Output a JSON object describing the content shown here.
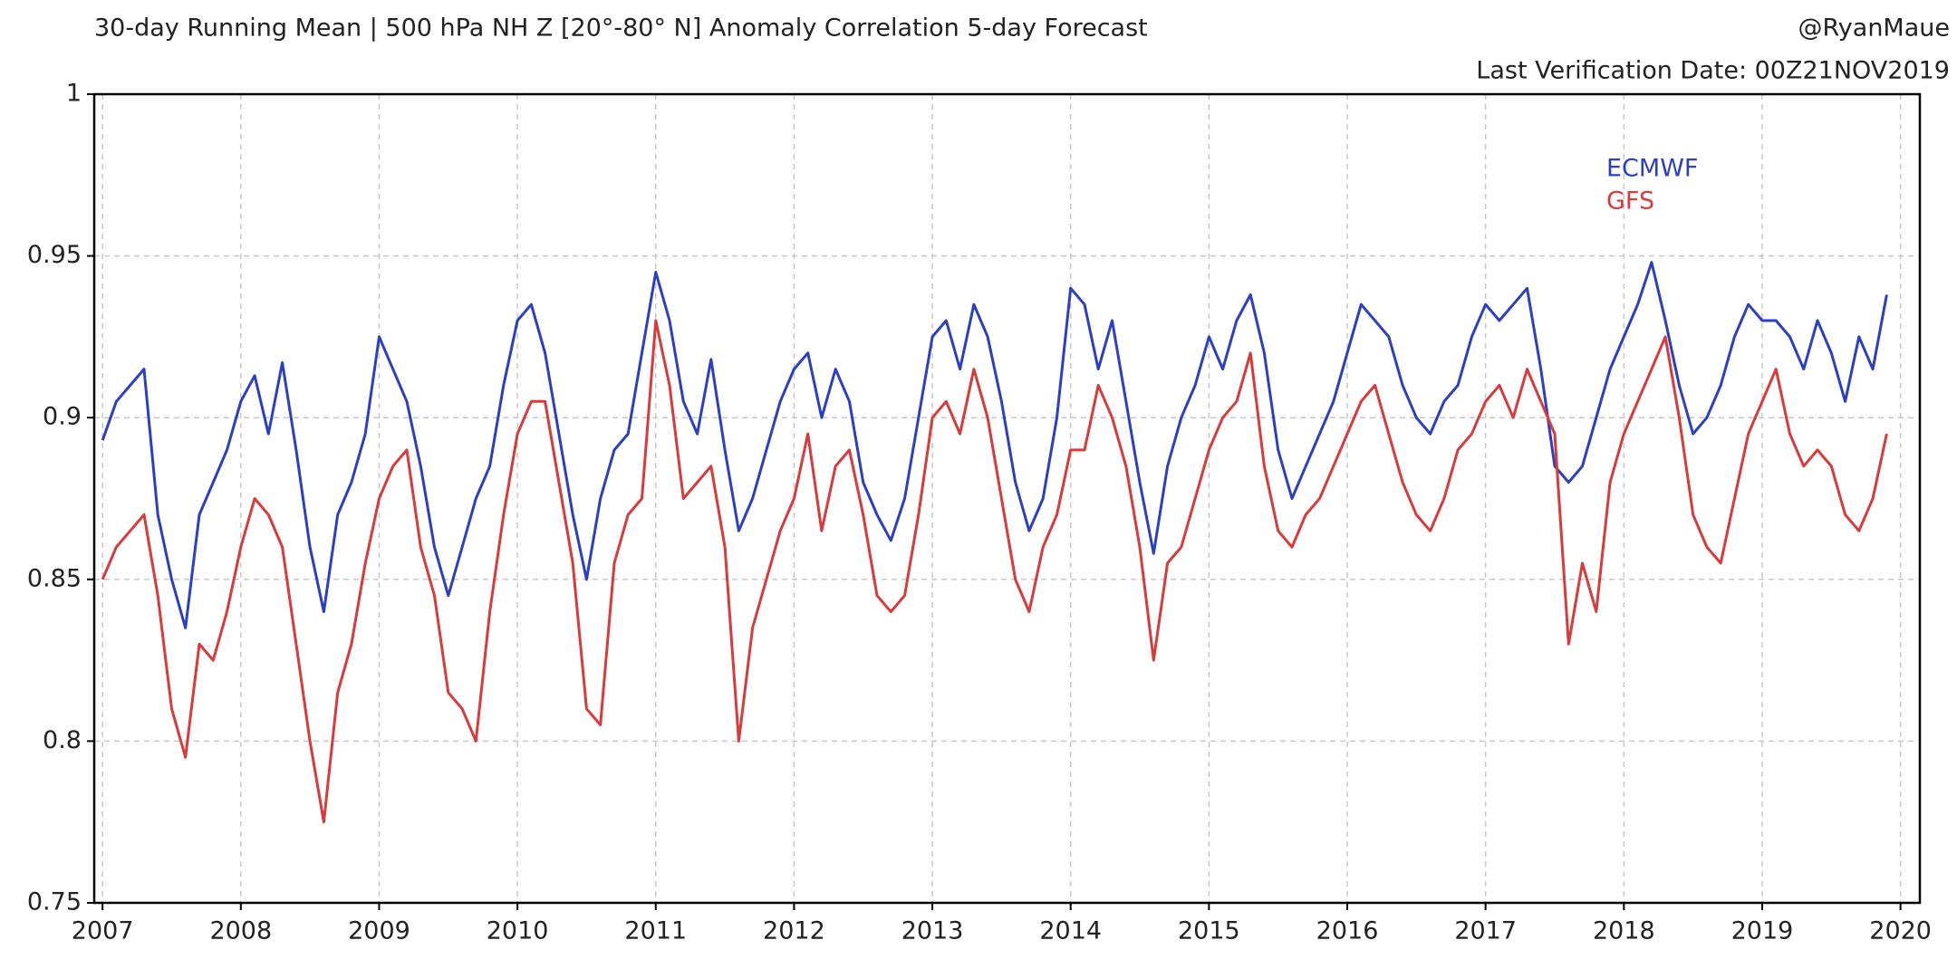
{
  "chart_data": {
    "type": "line",
    "title": "30-day Running Mean | 500 hPa NH Z [20°-80° N] Anomaly Correlation 5-day Forecast",
    "credit": "@RyanMaue",
    "subtitle": "Last Verification Date: 00Z21NOV2019",
    "xlim": [
      2006.94,
      2020.14
    ],
    "ylim": [
      0.75,
      1
    ],
    "xticks": [
      2007,
      2008,
      2009,
      2010,
      2011,
      2012,
      2013,
      2014,
      2015,
      2016,
      2017,
      2018,
      2019,
      2020
    ],
    "yticks": [
      0.75,
      0.8,
      0.85,
      0.9,
      0.95,
      1
    ],
    "grid": true,
    "legend": "upper right",
    "x": [
      2007,
      2007.1,
      2007.2,
      2007.3,
      2007.4,
      2007.5,
      2007.6,
      2007.7,
      2007.8,
      2007.9,
      2008,
      2008.1,
      2008.2,
      2008.3,
      2008.4,
      2008.5,
      2008.6,
      2008.7,
      2008.8,
      2008.9,
      2009,
      2009.1,
      2009.2,
      2009.3,
      2009.4,
      2009.5,
      2009.6,
      2009.7,
      2009.8,
      2009.9,
      2010,
      2010.1,
      2010.2,
      2010.3,
      2010.4,
      2010.5,
      2010.6,
      2010.7,
      2010.8,
      2010.9,
      2011,
      2011.1,
      2011.2,
      2011.3,
      2011.4,
      2011.5,
      2011.6,
      2011.7,
      2011.8,
      2011.9,
      2012,
      2012.1,
      2012.2,
      2012.3,
      2012.4,
      2012.5,
      2012.6,
      2012.7,
      2012.8,
      2012.9,
      2013,
      2013.1,
      2013.2,
      2013.3,
      2013.4,
      2013.5,
      2013.6,
      2013.7,
      2013.8,
      2013.9,
      2014,
      2014.1,
      2014.2,
      2014.3,
      2014.4,
      2014.5,
      2014.6,
      2014.7,
      2014.8,
      2014.9,
      2015,
      2015.1,
      2015.2,
      2015.3,
      2015.4,
      2015.5,
      2015.6,
      2015.7,
      2015.8,
      2015.9,
      2016,
      2016.1,
      2016.2,
      2016.3,
      2016.4,
      2016.5,
      2016.6,
      2016.7,
      2016.8,
      2016.9,
      2017,
      2017.1,
      2017.2,
      2017.3,
      2017.4,
      2017.5,
      2017.6,
      2017.7,
      2017.8,
      2017.9,
      2018,
      2018.1,
      2018.2,
      2018.3,
      2018.4,
      2018.5,
      2018.6,
      2018.7,
      2018.8,
      2018.9,
      2019,
      2019.1,
      2019.2,
      2019.3,
      2019.4,
      2019.5,
      2019.6,
      2019.7,
      2019.8,
      2019.9
    ],
    "series": [
      {
        "name": "ECMWF",
        "color": "#2b3fc6",
        "values": [
          0.893,
          0.905,
          0.91,
          0.915,
          0.87,
          0.85,
          0.835,
          0.87,
          0.88,
          0.89,
          0.905,
          0.913,
          0.895,
          0.917,
          0.89,
          0.86,
          0.84,
          0.87,
          0.88,
          0.895,
          0.925,
          0.915,
          0.905,
          0.885,
          0.86,
          0.845,
          0.86,
          0.875,
          0.885,
          0.91,
          0.93,
          0.935,
          0.92,
          0.895,
          0.87,
          0.85,
          0.875,
          0.89,
          0.895,
          0.92,
          0.945,
          0.93,
          0.905,
          0.895,
          0.918,
          0.89,
          0.865,
          0.875,
          0.89,
          0.905,
          0.915,
          0.92,
          0.9,
          0.915,
          0.905,
          0.88,
          0.87,
          0.862,
          0.875,
          0.9,
          0.925,
          0.93,
          0.915,
          0.935,
          0.925,
          0.905,
          0.88,
          0.865,
          0.875,
          0.9,
          0.94,
          0.935,
          0.915,
          0.93,
          0.905,
          0.88,
          0.858,
          0.885,
          0.9,
          0.91,
          0.925,
          0.915,
          0.93,
          0.938,
          0.92,
          0.89,
          0.875,
          0.885,
          0.895,
          0.905,
          0.92,
          0.935,
          0.93,
          0.925,
          0.91,
          0.9,
          0.895,
          0.905,
          0.91,
          0.925,
          0.935,
          0.93,
          0.935,
          0.94,
          0.915,
          0.885,
          0.88,
          0.885,
          0.9,
          0.915,
          0.925,
          0.935,
          0.948,
          0.93,
          0.91,
          0.895,
          0.9,
          0.91,
          0.925,
          0.935,
          0.93,
          0.93,
          0.925,
          0.915,
          0.93,
          0.92,
          0.905,
          0.925,
          0.915,
          0.938
        ]
      },
      {
        "name": "GFS",
        "color": "#d93a3a",
        "values": [
          0.85,
          0.86,
          0.865,
          0.87,
          0.845,
          0.81,
          0.795,
          0.83,
          0.825,
          0.84,
          0.86,
          0.875,
          0.87,
          0.86,
          0.83,
          0.8,
          0.775,
          0.815,
          0.83,
          0.855,
          0.875,
          0.885,
          0.89,
          0.86,
          0.845,
          0.815,
          0.81,
          0.8,
          0.84,
          0.87,
          0.895,
          0.905,
          0.905,
          0.88,
          0.855,
          0.81,
          0.805,
          0.855,
          0.87,
          0.875,
          0.93,
          0.91,
          0.875,
          0.88,
          0.885,
          0.86,
          0.8,
          0.835,
          0.85,
          0.865,
          0.875,
          0.895,
          0.865,
          0.885,
          0.89,
          0.87,
          0.845,
          0.84,
          0.845,
          0.87,
          0.9,
          0.905,
          0.895,
          0.915,
          0.9,
          0.875,
          0.85,
          0.84,
          0.86,
          0.87,
          0.89,
          0.89,
          0.91,
          0.9,
          0.885,
          0.86,
          0.825,
          0.855,
          0.86,
          0.875,
          0.89,
          0.9,
          0.905,
          0.92,
          0.885,
          0.865,
          0.86,
          0.87,
          0.875,
          0.885,
          0.895,
          0.905,
          0.91,
          0.895,
          0.88,
          0.87,
          0.865,
          0.875,
          0.89,
          0.895,
          0.905,
          0.91,
          0.9,
          0.915,
          0.905,
          0.895,
          0.83,
          0.855,
          0.84,
          0.88,
          0.895,
          0.905,
          0.915,
          0.925,
          0.9,
          0.87,
          0.86,
          0.855,
          0.875,
          0.895,
          0.905,
          0.915,
          0.895,
          0.885,
          0.89,
          0.885,
          0.87,
          0.865,
          0.875,
          0.895
        ]
      }
    ]
  }
}
